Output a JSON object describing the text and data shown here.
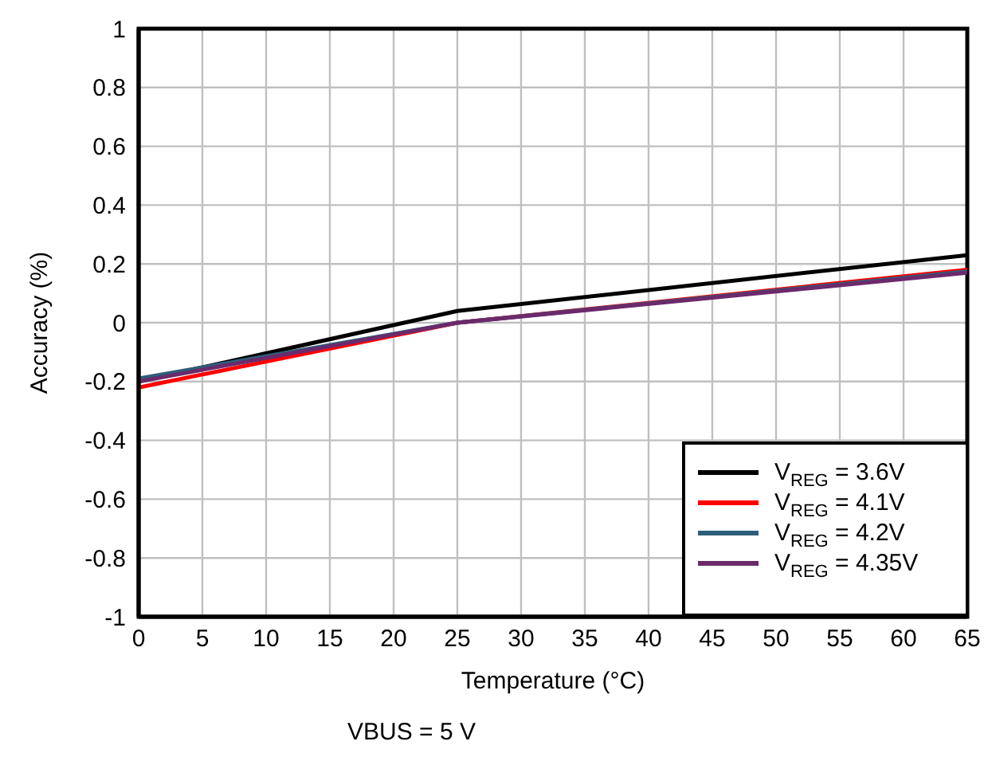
{
  "chart_data": {
    "type": "line",
    "xlabel": "Temperature (°C)",
    "ylabel": "Accuracy (%)",
    "x": [
      0,
      25,
      65
    ],
    "series": [
      {
        "name": "V$_{REG}$ = 3.6V",
        "color": "#000000",
        "values": [
          -0.2,
          0.04,
          0.23
        ]
      },
      {
        "name": "V$_{REG}$ = 4.1V",
        "color": "#ff0000",
        "values": [
          -0.22,
          0.0,
          0.18
        ]
      },
      {
        "name": "V$_{REG}$ = 4.2V",
        "color": "#2e5e7a",
        "values": [
          -0.19,
          0.0,
          0.175
        ]
      },
      {
        "name": "V$_{REG}$ = 4.35V",
        "color": "#6b2a6b",
        "values": [
          -0.2,
          0.0,
          0.17
        ]
      }
    ],
    "xlim": [
      0,
      65
    ],
    "xticks": [
      0,
      5,
      10,
      15,
      20,
      25,
      30,
      35,
      40,
      45,
      50,
      55,
      60,
      65
    ],
    "ylim": [
      -1,
      1
    ],
    "yticks": [
      -1,
      -0.8,
      -0.6,
      -0.4,
      -0.2,
      0,
      0.2,
      0.4,
      0.6,
      0.8,
      1
    ],
    "grid": true,
    "legend": "bottom right",
    "marker": "none",
    "line_style": "solid",
    "annotations": [
      "VBUS = 5 V"
    ]
  }
}
